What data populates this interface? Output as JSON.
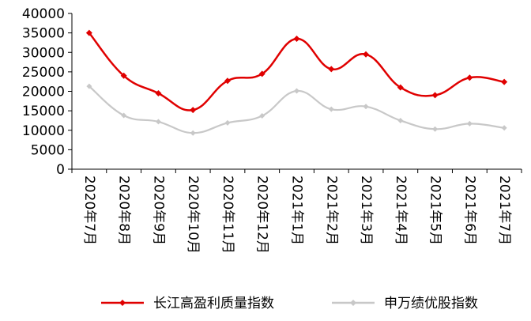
{
  "chart_data": {
    "type": "line",
    "categories": [
      "2020年7月",
      "2020年8月",
      "2020年9月",
      "2020年10月",
      "2020年11月",
      "2020年12月",
      "2021年1月",
      "2021年2月",
      "2021年3月",
      "2021年4月",
      "2021年5月",
      "2021年6月",
      "2021年7月"
    ],
    "series": [
      {
        "name": "长江高盈利质量指数",
        "color": "#e00000",
        "values": [
          35000,
          24000,
          19500,
          15200,
          22700,
          24500,
          33500,
          25700,
          29500,
          21000,
          19000,
          23500,
          22400
        ]
      },
      {
        "name": "申万绩优股指数",
        "color": "#c8c8c8",
        "values": [
          21300,
          13800,
          12200,
          9300,
          11900,
          13700,
          20100,
          15400,
          16100,
          12500,
          10300,
          11700,
          10600
        ]
      }
    ],
    "yticks": [
      "40000",
      "35000",
      "30000",
      "25000",
      "20000",
      "15000",
      "10000",
      "5000",
      "0"
    ],
    "ylim": [
      0,
      40000
    ],
    "grid": false,
    "legend_position": "bottom"
  }
}
